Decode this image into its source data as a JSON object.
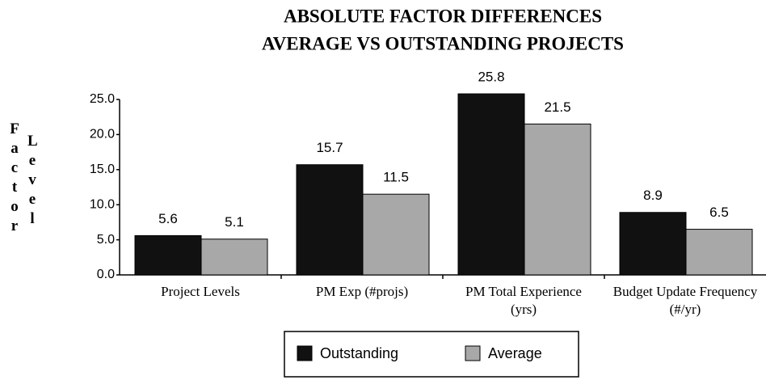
{
  "chart_data": {
    "type": "bar",
    "title": [
      "ABSOLUTE FACTOR DIFFERENCES",
      "AVERAGE VS OUTSTANDING PROJECTS"
    ],
    "y_label": [
      "Factor",
      "Level"
    ],
    "categories": [
      "Project Levels",
      "PM Exp (#projs)",
      "PM Total Experience (yrs)",
      "Budget Update Frequency (#/yr)"
    ],
    "series": [
      {
        "name": "Outstanding",
        "color": "#111111",
        "values": [
          5.6,
          15.7,
          25.8,
          8.9
        ]
      },
      {
        "name": "Average",
        "color": "#a8a8a8",
        "values": [
          5.1,
          11.5,
          21.5,
          6.5
        ]
      }
    ],
    "ylim": [
      0,
      25
    ],
    "yticks": [
      {
        "value": 0,
        "label": "0.0"
      },
      {
        "value": 5,
        "label": "5.0"
      },
      {
        "value": 10,
        "label": "10.0"
      },
      {
        "value": 15,
        "label": "15.0"
      },
      {
        "value": 20,
        "label": "20.0"
      },
      {
        "value": 25,
        "label": "25.0"
      }
    ],
    "legend": "bottom"
  }
}
